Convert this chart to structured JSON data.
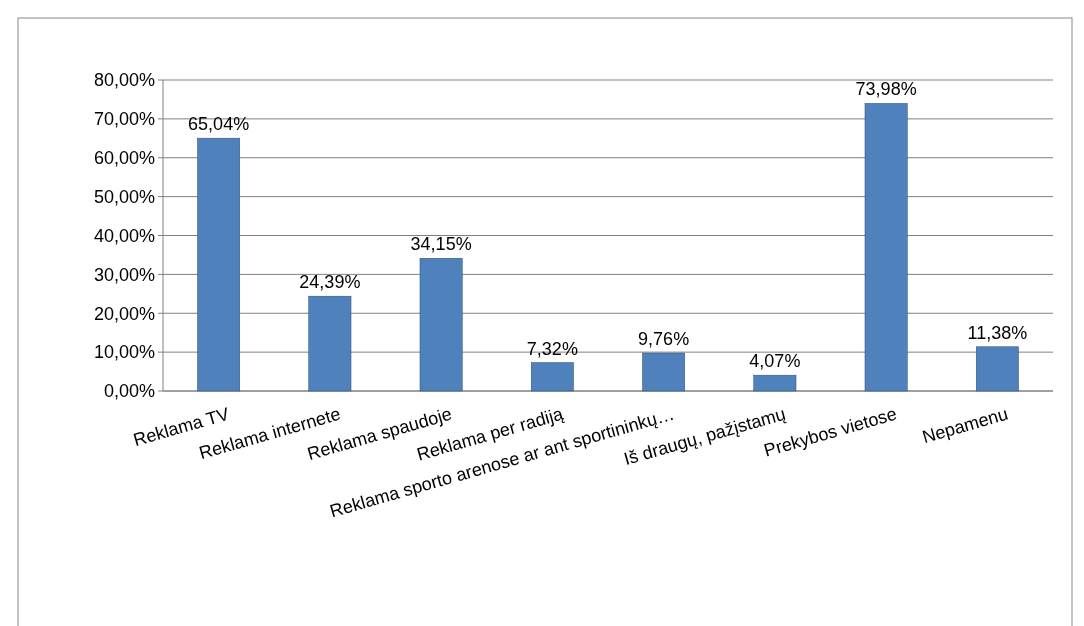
{
  "chart_data": {
    "type": "bar",
    "categories": [
      "Reklama TV",
      "Reklama internete",
      "Reklama spaudoje",
      "Reklama per radiją",
      "Reklama sporto arenose ar ant sportininkų…",
      "Iš draugų, pažįstamų",
      "Prekybos vietose",
      "Nepamenu"
    ],
    "values": [
      65.04,
      24.39,
      34.15,
      7.32,
      9.76,
      4.07,
      73.98,
      11.38
    ],
    "value_labels": [
      "65,04%",
      "24,39%",
      "34,15%",
      "7,32%",
      "9,76%",
      "4,07%",
      "73,98%",
      "11,38%"
    ],
    "color": "#4f81bd",
    "ylim": [
      0,
      80
    ],
    "yticks": [
      {
        "value": 0,
        "label": "0,00%"
      },
      {
        "value": 10,
        "label": "10,00%"
      },
      {
        "value": 20,
        "label": "20,00%"
      },
      {
        "value": 30,
        "label": "30,00%"
      },
      {
        "value": 40,
        "label": "40,00%"
      },
      {
        "value": 50,
        "label": "50,00%"
      },
      {
        "value": 60,
        "label": "60,00%"
      },
      {
        "value": 70,
        "label": "70,00%"
      },
      {
        "value": 80,
        "label": "80,00%"
      }
    ],
    "grid": true
  }
}
